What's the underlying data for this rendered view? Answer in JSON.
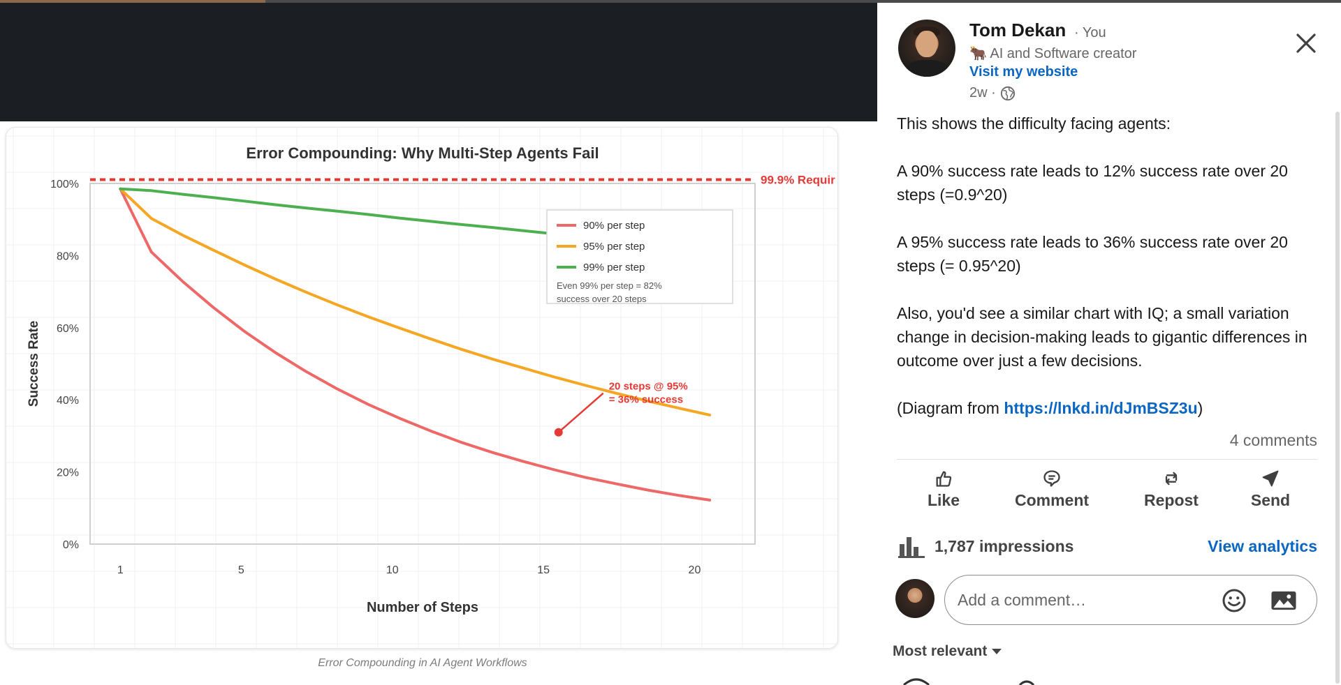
{
  "post": {
    "author": {
      "name": "Tom Dekan",
      "you_badge": "· You",
      "tagline": "🐂 AI and Software creator",
      "website_label": "Visit my website",
      "age": "2w ·"
    },
    "body": {
      "p1": "This shows the difficulty facing agents:",
      "p2": "A 90% success rate leads to 12% success rate over 20 steps (=0.9^20)",
      "p3": "A 95% success rate leads to 36% success rate over 20 steps (= 0.95^20)",
      "p4": "Also, you'd see a similar chart with IQ; a small variation change in decision-making leads to gigantic differences in outcome over just a few decisions.",
      "p5_prefix": "(Diagram from ",
      "p5_link": "https://lnkd.in/dJmBSZ3u",
      "p5_suffix": ")"
    },
    "comments_count": "4 comments",
    "actions": {
      "like": "Like",
      "comment": "Comment",
      "repost": "Repost",
      "send": "Send"
    },
    "impressions": "1,787 impressions",
    "view_analytics": "View analytics",
    "comment_placeholder": "Add a comment…",
    "sort_label": "Most relevant"
  },
  "media": {
    "caption": "Error Compounding in AI Agent Workflows"
  },
  "icons": {
    "close": "close-icon",
    "globe": "globe-icon",
    "like": "thumbs-up-icon",
    "comment": "comment-bubble-icon",
    "repost": "repost-icon",
    "send": "send-icon",
    "impressions": "bar-chart-icon",
    "emoji": "emoji-icon",
    "image": "image-icon",
    "sort": "caret-down-icon"
  },
  "colors": {
    "link": "#0a66c2",
    "red_series": "#ee6868",
    "orange_series": "#f5a623",
    "green_series": "#4caf50",
    "requirement_line": "#e53935"
  },
  "chart_data": {
    "type": "line",
    "title": "Error Compounding: Why Multi-Step Agents Fail",
    "xlabel": "Number of Steps",
    "ylabel": "Success Rate",
    "xlim": [
      0,
      22
    ],
    "ylim": [
      0,
      1
    ],
    "xticks": [
      1,
      5,
      10,
      15,
      20
    ],
    "yticks": [
      {
        "value": 1.0,
        "label": "100%"
      },
      {
        "value": 0.8,
        "label": "80%"
      },
      {
        "value": 0.6,
        "label": "60%"
      },
      {
        "value": 0.4,
        "label": "40%"
      },
      {
        "value": 0.2,
        "label": "20%"
      },
      {
        "value": 0.0,
        "label": "0%"
      }
    ],
    "grid": true,
    "legend_position": "top-right",
    "x": [
      1,
      2,
      3,
      4,
      5,
      6,
      7,
      8,
      9,
      10,
      11,
      12,
      13,
      14,
      15,
      16,
      17,
      18,
      19,
      20
    ],
    "series": [
      {
        "name": "90% per step",
        "color": "#ee6868",
        "values": [
          0.9,
          0.81,
          0.729,
          0.656,
          0.59,
          0.531,
          0.478,
          0.43,
          0.387,
          0.349,
          0.314,
          0.282,
          0.254,
          0.229,
          0.206,
          0.185,
          0.167,
          0.15,
          0.135,
          0.122
        ]
      },
      {
        "name": "95% per step",
        "color": "#f5a623",
        "values": [
          0.95,
          0.903,
          0.857,
          0.815,
          0.774,
          0.735,
          0.698,
          0.663,
          0.63,
          0.599,
          0.569,
          0.54,
          0.513,
          0.488,
          0.463,
          0.44,
          0.418,
          0.397,
          0.377,
          0.358
        ]
      },
      {
        "name": "99% per step",
        "color": "#4caf50",
        "values": [
          0.99,
          0.98,
          0.97,
          0.961,
          0.951,
          0.941,
          0.932,
          0.923,
          0.914,
          0.904,
          0.895,
          0.886,
          0.878,
          0.869,
          0.86,
          0.851,
          0.843,
          0.835,
          0.826,
          0.818
        ]
      }
    ],
    "reference_line": {
      "value": 0.999,
      "label": "99.9% Requir"
    },
    "legend_note": [
      "Even 99% per step = 82%",
      "success over 20 steps"
    ],
    "annotation": {
      "x": 15.5,
      "y": 0.31,
      "lines": [
        "20 steps @ 95%",
        "= 36% success"
      ]
    }
  }
}
